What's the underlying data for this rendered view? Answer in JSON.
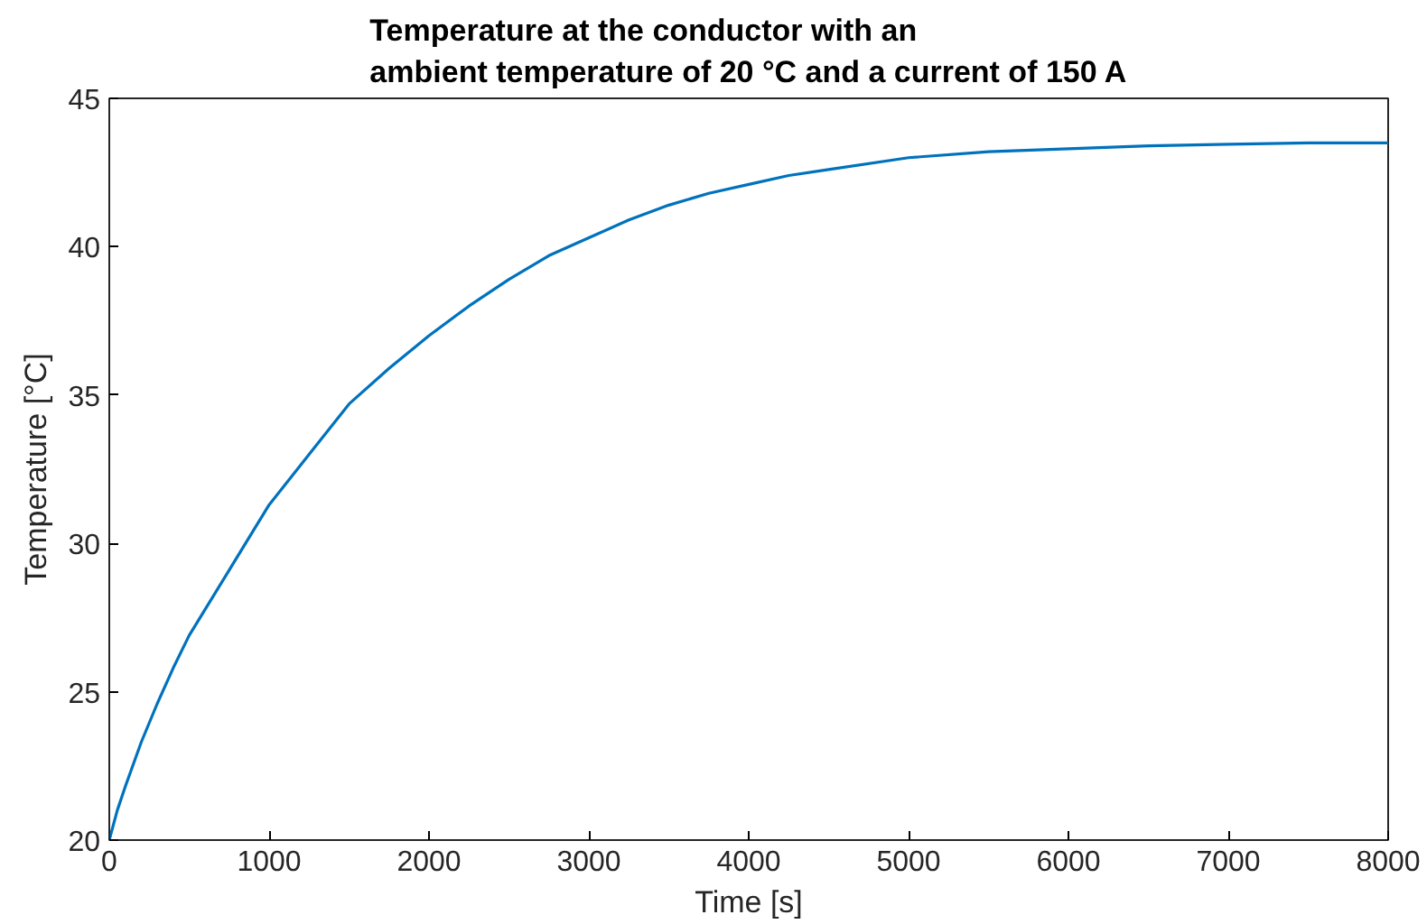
{
  "chart_data": {
    "type": "line",
    "title": "Temperature at the conductor with an\nambient temperature of 20 °C and a current of 150 A",
    "xlabel": "Time [s]",
    "ylabel": "Temperature [°C]",
    "x": [
      0,
      50,
      100,
      200,
      300,
      400,
      500,
      750,
      1000,
      1250,
      1500,
      1750,
      2000,
      2250,
      2500,
      2750,
      3000,
      3250,
      3500,
      3750,
      4000,
      4250,
      4500,
      5000,
      5500,
      6000,
      6500,
      7000,
      7500,
      8000
    ],
    "series": [
      {
        "color": "#0072bd",
        "values": [
          20.0,
          21.0,
          21.8,
          23.3,
          24.6,
          25.8,
          26.9,
          29.1,
          31.3,
          33.0,
          34.7,
          35.9,
          37.0,
          38.0,
          38.9,
          39.7,
          40.3,
          40.9,
          41.4,
          41.8,
          42.1,
          42.4,
          42.6,
          43.0,
          43.2,
          43.3,
          43.4,
          43.45,
          43.5,
          43.5
        ]
      }
    ],
    "xlim": [
      0,
      8000
    ],
    "ylim": [
      20,
      45
    ],
    "xticks": [
      0,
      1000,
      2000,
      3000,
      4000,
      5000,
      6000,
      7000,
      8000
    ],
    "yticks": [
      20,
      25,
      30,
      35,
      40,
      45
    ],
    "grid": false,
    "line_style": "solid",
    "marker": "none"
  }
}
